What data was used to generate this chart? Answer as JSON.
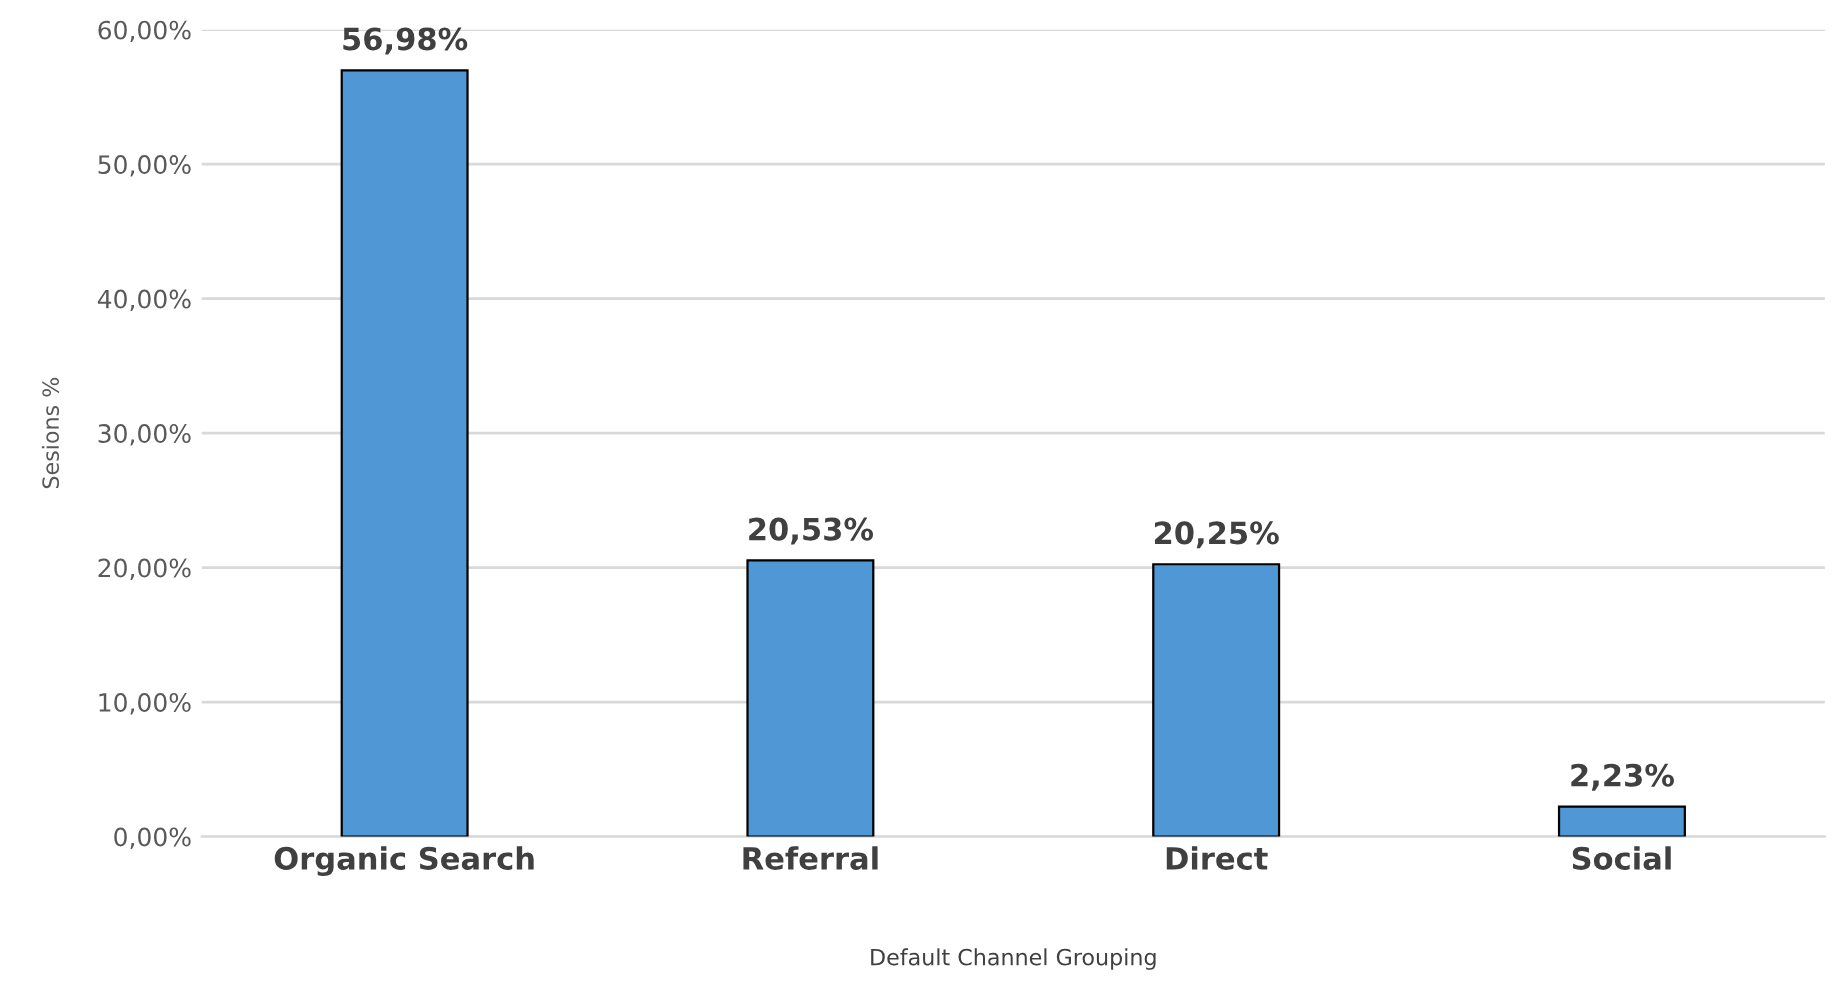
{
  "chart_data": {
    "type": "bar",
    "xlabel": "Default Channel Grouping",
    "ylabel": "Sesions %",
    "categories": [
      "Organic Search",
      "Referral",
      "Direct",
      "Social"
    ],
    "values": [
      56.98,
      20.53,
      20.25,
      2.23
    ],
    "value_labels": [
      "56,98%",
      "20,53%",
      "20,25%",
      "2,23%"
    ],
    "color": "#5097d5",
    "ylim": [
      0,
      60
    ],
    "yticks": [
      {
        "value": 0,
        "label": "0,00%"
      },
      {
        "value": 10,
        "label": "10,00%"
      },
      {
        "value": 20,
        "label": "20,00%"
      },
      {
        "value": 30,
        "label": "30,00%"
      },
      {
        "value": 40,
        "label": "40,00%"
      },
      {
        "value": 50,
        "label": "50,00%"
      },
      {
        "value": 60,
        "label": "60,00%"
      }
    ],
    "grid": "y",
    "legend": false
  }
}
